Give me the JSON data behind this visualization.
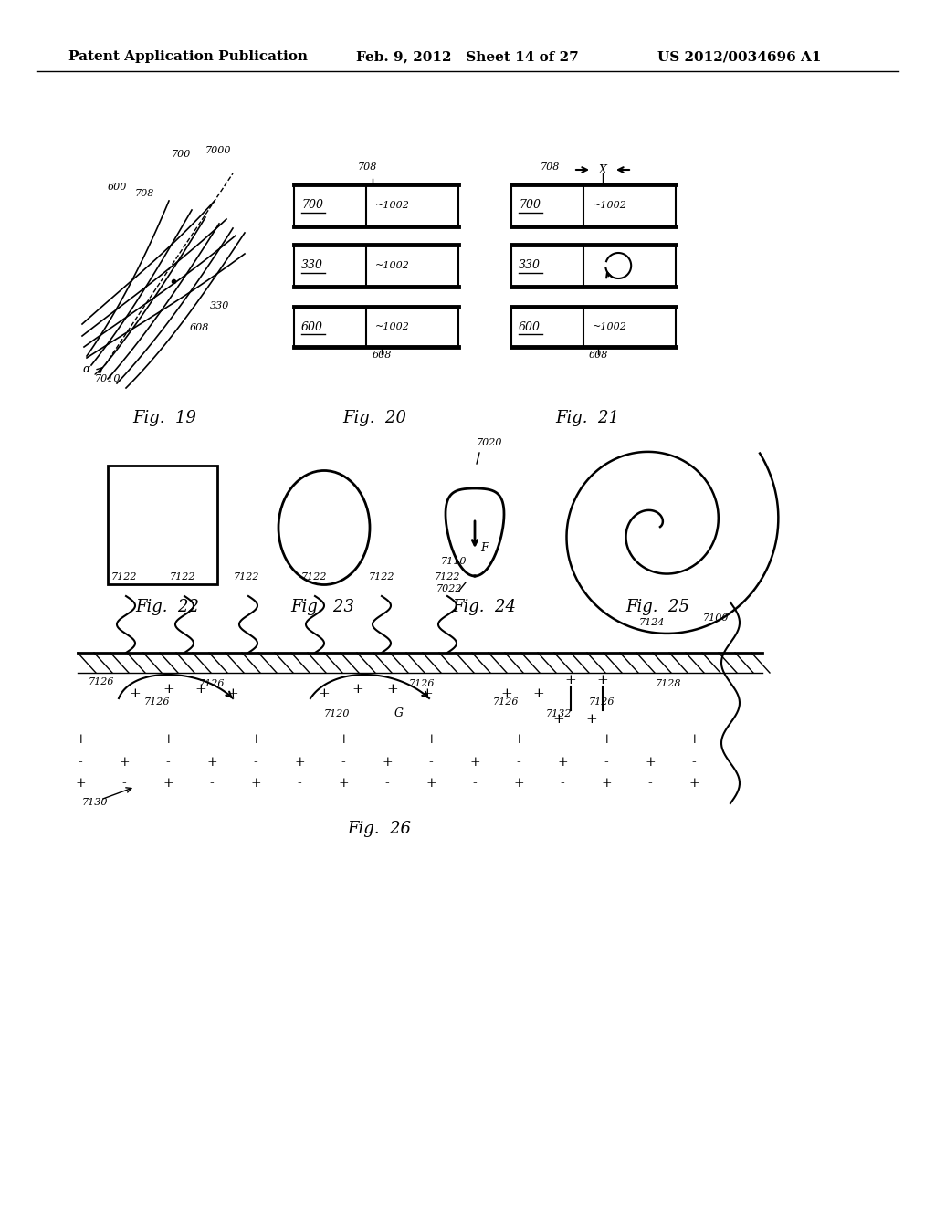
{
  "header_left": "Patent Application Publication",
  "header_mid": "Feb. 9, 2012   Sheet 14 of 27",
  "header_right": "US 2012/0034696 A1",
  "bg_color": "#ffffff",
  "line_color": "#000000"
}
